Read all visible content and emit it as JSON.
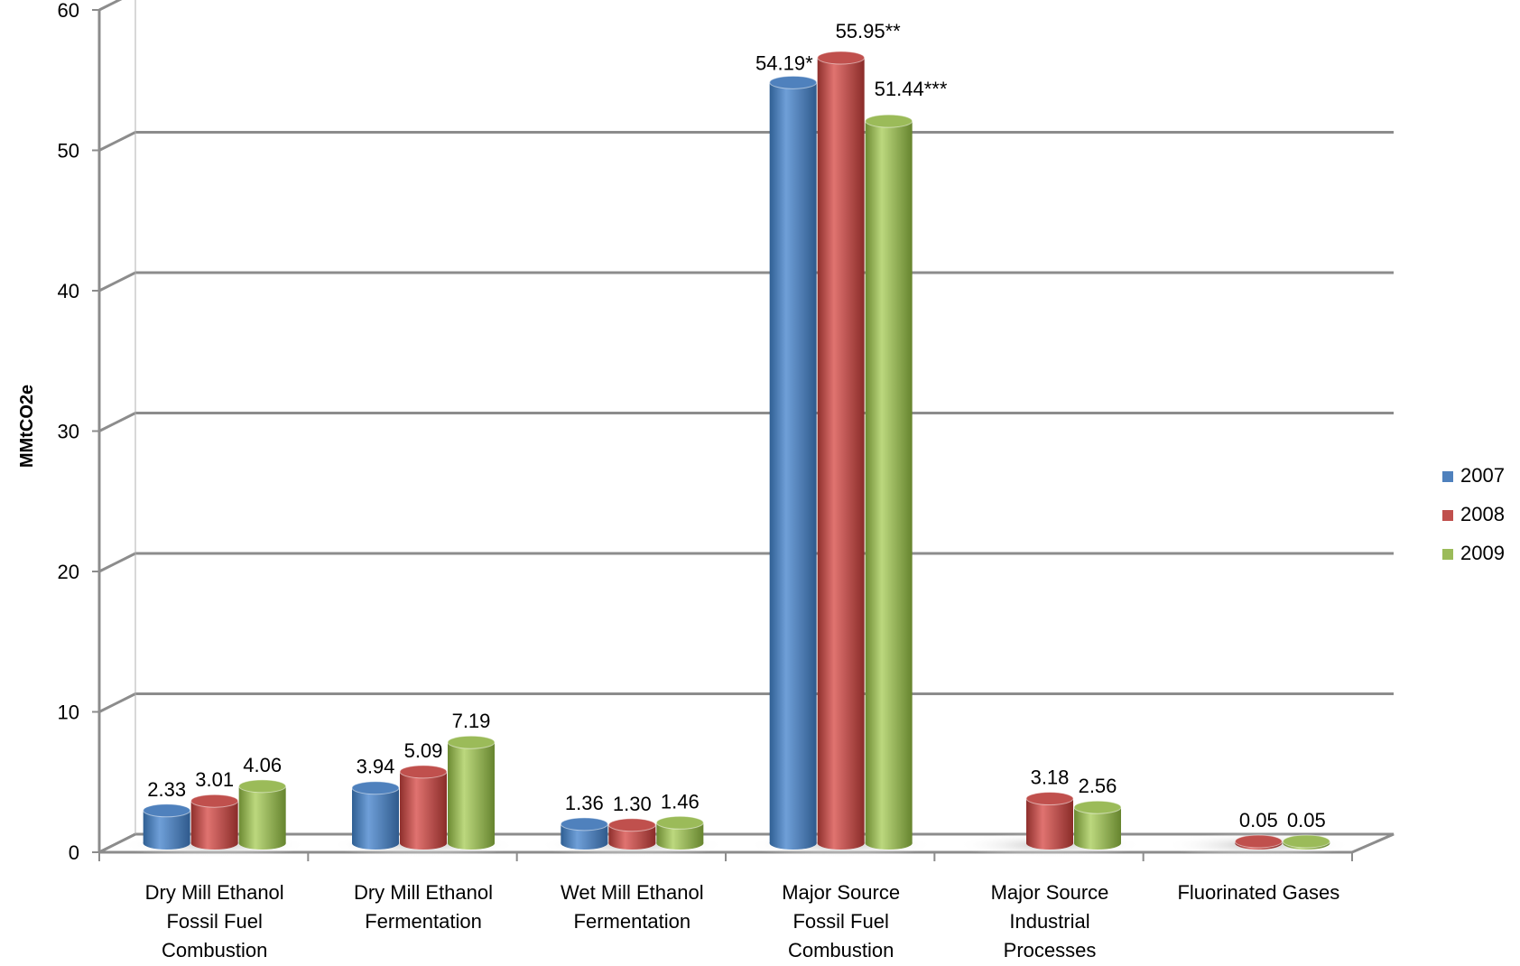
{
  "chart_data": {
    "type": "bar",
    "title": "",
    "ylabel": "MMtCO2e",
    "xlabel": "",
    "ylim": [
      0,
      60
    ],
    "yticks": [
      "0",
      "10",
      "20",
      "30",
      "40",
      "50",
      "60"
    ],
    "grid": true,
    "legend_position": "right",
    "categories": [
      [
        "Dry Mill Ethanol",
        "Fossil Fuel",
        "Combustion"
      ],
      [
        "Dry Mill Ethanol",
        "Fermentation"
      ],
      [
        "Wet Mill Ethanol",
        "Fermentation"
      ],
      [
        "Major Source",
        "Fossil Fuel",
        "Combustion"
      ],
      [
        "Major Source",
        "Industrial",
        "Processes"
      ],
      [
        "Fluorinated Gases"
      ]
    ],
    "series": [
      {
        "name": "2007",
        "color": "#4f81bd",
        "values": [
          2.33,
          3.94,
          1.36,
          54.19,
          null,
          null
        ],
        "labels": [
          "2.33",
          "3.94",
          "1.36",
          "54.19*",
          null,
          null
        ]
      },
      {
        "name": "2008",
        "color": "#c0504d",
        "values": [
          3.01,
          5.09,
          1.3,
          55.95,
          3.18,
          0.05
        ],
        "labels": [
          "3.01",
          "5.09",
          "1.30",
          "55.95**",
          "3.18",
          "0.05"
        ]
      },
      {
        "name": "2009",
        "color": "#9bbb59",
        "values": [
          4.06,
          7.19,
          1.46,
          51.44,
          2.56,
          0.05
        ],
        "labels": [
          "4.06",
          "7.19",
          "1.46",
          "51.44***",
          "2.56",
          "0.05"
        ]
      }
    ]
  }
}
